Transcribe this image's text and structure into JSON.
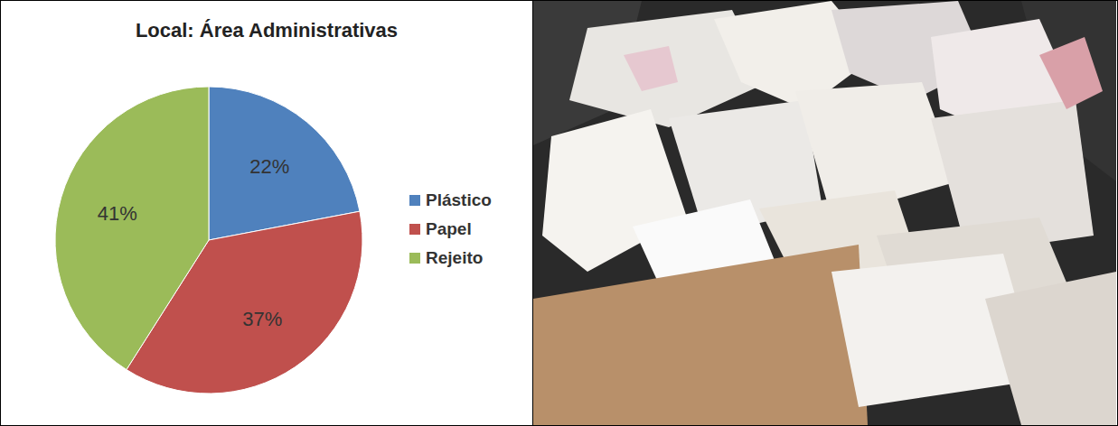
{
  "chart_data": {
    "type": "pie",
    "title": "Local: Área Administrativas",
    "categories": [
      "Plástico",
      "Papel",
      "Rejeito"
    ],
    "values": [
      22,
      37,
      41
    ],
    "value_labels": [
      "22%",
      "37%",
      "41%"
    ],
    "colors": [
      "#4f81bd",
      "#c0504d",
      "#9bbb59"
    ],
    "data_labels": true,
    "legend": "right"
  }
}
